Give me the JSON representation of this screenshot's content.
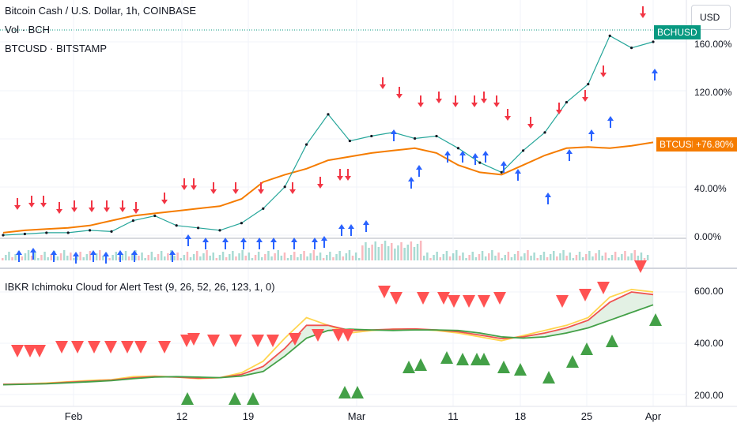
{
  "header": {
    "symbol_title": "Bitcoin Cash / U.S. Dollar, 1h, COINBASE",
    "volume_legend": "Vol · BCH",
    "compare_legend": "BTCUSD · BITSTAMP",
    "currency_button": "USD"
  },
  "price_tags": {
    "main_symbol": "BCHUSD",
    "compare_symbol": "BTCUSD",
    "compare_change": "+76.80%"
  },
  "indicator": {
    "legend": "IBKR Ichimoku  Cloud for Alert Test (9, 26, 52, 26, 123, 1, 0)"
  },
  "colors": {
    "bch_tag": "#089981",
    "btc_line": "#f57c00",
    "sell_arrow": "#f23645",
    "buy_arrow": "#2962ff",
    "sell_triangle": "#ff5252",
    "buy_triangle": "#43a047",
    "tenkan": "#ffd54f",
    "kijun": "#ef5350",
    "senkou": "#43a047"
  },
  "chart_data": [
    {
      "type": "line",
      "title": "Bitcoin Cash / U.S. Dollar, 1h, COINBASE",
      "yscale": "percent",
      "y_ticks": [
        "0.00%",
        "40.00%",
        "120.00%",
        "160.00%"
      ],
      "x_ticks": [
        "Feb",
        "12",
        "19",
        "Mar",
        "11",
        "18",
        "25",
        "Apr"
      ],
      "series": [
        {
          "name": "BCHUSD",
          "x": [
            "Jan 25",
            "Jan 28",
            "Jan 31",
            "Feb 3",
            "Feb 6",
            "Feb 9",
            "Feb 12",
            "Feb 15",
            "Feb 18",
            "Feb 21",
            "Feb 24",
            "Feb 27",
            "Feb 29",
            "Mar 1",
            "Mar 3",
            "Mar 5",
            "Mar 7",
            "Mar 9",
            "Mar 11",
            "Mar 13",
            "Mar 15",
            "Mar 17",
            "Mar 19",
            "Mar 21",
            "Mar 23",
            "Mar 25",
            "Mar 27",
            "Mar 28",
            "Mar 29",
            "Mar 30",
            "Mar 31"
          ],
          "values": [
            0,
            1,
            2,
            2,
            4,
            3,
            12,
            16,
            8,
            6,
            4,
            10,
            22,
            40,
            75,
            100,
            78,
            82,
            85,
            80,
            82,
            72,
            60,
            52,
            70,
            85,
            110,
            125,
            165,
            155,
            160
          ]
        },
        {
          "name": "BTCUSD",
          "x": [
            "Jan 25",
            "Jan 28",
            "Jan 31",
            "Feb 3",
            "Feb 6",
            "Feb 9",
            "Feb 12",
            "Feb 15",
            "Feb 18",
            "Feb 21",
            "Feb 24",
            "Feb 27",
            "Feb 29",
            "Mar 1",
            "Mar 3",
            "Mar 5",
            "Mar 7",
            "Mar 9",
            "Mar 11",
            "Mar 13",
            "Mar 15",
            "Mar 17",
            "Mar 19",
            "Mar 21",
            "Mar 23",
            "Mar 25",
            "Mar 27",
            "Mar 28",
            "Mar 29",
            "Mar 30",
            "Mar 31"
          ],
          "values": [
            2,
            4,
            5,
            6,
            8,
            12,
            16,
            18,
            20,
            22,
            24,
            30,
            44,
            50,
            55,
            62,
            65,
            68,
            70,
            72,
            68,
            58,
            52,
            50,
            58,
            66,
            72,
            73,
            72,
            74,
            76.8
          ]
        }
      ]
    },
    {
      "type": "line",
      "title": "IBKR Ichimoku  Cloud for Alert Test (9, 26, 52, 26, 123, 1, 0)",
      "y_ticks": [
        "200.00",
        "400.00",
        "600.00"
      ],
      "series": [
        {
          "name": "Tenkan",
          "values": [
            240,
            242,
            245,
            250,
            255,
            258,
            270,
            272,
            268,
            262,
            266,
            285,
            330,
            420,
            500,
            470,
            440,
            450,
            455,
            455,
            450,
            440,
            425,
            410,
            430,
            450,
            470,
            500,
            580,
            610,
            600
          ]
        },
        {
          "name": "Kijun",
          "values": [
            240,
            241,
            243,
            248,
            252,
            256,
            265,
            270,
            268,
            264,
            266,
            278,
            310,
            380,
            470,
            470,
            450,
            452,
            455,
            456,
            452,
            445,
            432,
            418,
            425,
            440,
            460,
            490,
            560,
            600,
            590
          ]
        },
        {
          "name": "Senkou",
          "values": [
            238,
            240,
            242,
            246,
            250,
            254,
            262,
            268,
            270,
            268,
            266,
            272,
            290,
            350,
            420,
            450,
            455,
            452,
            450,
            452,
            452,
            450,
            440,
            425,
            420,
            425,
            440,
            460,
            490,
            520,
            550
          ]
        }
      ]
    }
  ]
}
